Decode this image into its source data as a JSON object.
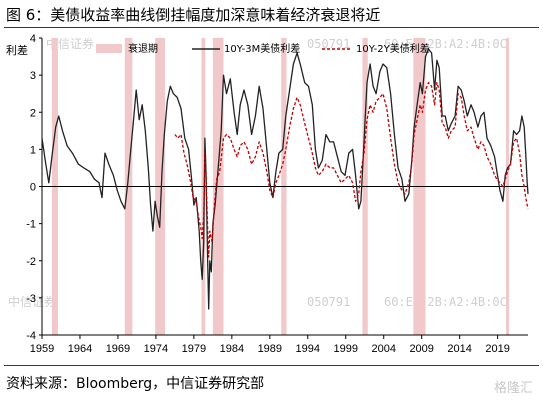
{
  "title": "图 6：美债收益率曲线倒挂幅度加深意味着经济衰退将近",
  "source": "资料来源：Bloomberg，中信证券研究部",
  "logo_text": "格隆汇",
  "watermarks": [
    "中信证券",
    "050791",
    "60:E3:2B:A2:4B:0C"
  ],
  "chart_data": {
    "type": "line",
    "ylabel": "利差",
    "ylim": [
      -4,
      4
    ],
    "yticks": [
      4,
      3,
      2,
      1,
      0,
      -1,
      -2,
      -3,
      -4
    ],
    "xlim": [
      1959,
      2023
    ],
    "xticks": [
      1959,
      1964,
      1969,
      1974,
      1979,
      1984,
      1989,
      1994,
      1999,
      2004,
      2009,
      2014,
      2019
    ],
    "legend_position": "top",
    "legend": [
      "衰退期",
      "10Y-3M美债利差",
      "10Y-2Y美债利差"
    ],
    "colors": {
      "recession": "#f2c9cb",
      "spread_10y3m": "#222222",
      "spread_10y2y": "#c00000"
    },
    "recessions": [
      [
        1960.3,
        1961.1
      ],
      [
        1969.9,
        1970.9
      ],
      [
        1973.9,
        1975.2
      ],
      [
        1980.0,
        1980.5
      ],
      [
        1981.5,
        1982.9
      ],
      [
        1990.5,
        1991.2
      ],
      [
        2001.2,
        2001.9
      ],
      [
        2007.9,
        2009.5
      ],
      [
        2020.1,
        2020.4
      ]
    ],
    "series": [
      {
        "name": "10Y-3M美债利差",
        "points": [
          [
            1959.0,
            1.3
          ],
          [
            1959.5,
            0.6
          ],
          [
            1959.9,
            0.1
          ],
          [
            1960.3,
            0.8
          ],
          [
            1960.8,
            1.6
          ],
          [
            1961.2,
            1.9
          ],
          [
            1961.7,
            1.5
          ],
          [
            1962.3,
            1.1
          ],
          [
            1963.0,
            0.9
          ],
          [
            1963.8,
            0.6
          ],
          [
            1964.5,
            0.5
          ],
          [
            1965.3,
            0.4
          ],
          [
            1965.9,
            0.2
          ],
          [
            1966.5,
            0.1
          ],
          [
            1966.9,
            -0.3
          ],
          [
            1967.3,
            0.9
          ],
          [
            1967.8,
            0.6
          ],
          [
            1968.4,
            0.3
          ],
          [
            1968.9,
            -0.1
          ],
          [
            1969.4,
            -0.4
          ],
          [
            1969.9,
            -0.6
          ],
          [
            1970.3,
            0.1
          ],
          [
            1970.7,
            1.0
          ],
          [
            1971.1,
            1.9
          ],
          [
            1971.4,
            2.6
          ],
          [
            1971.8,
            1.8
          ],
          [
            1972.2,
            2.2
          ],
          [
            1972.6,
            1.5
          ],
          [
            1973.0,
            0.5
          ],
          [
            1973.3,
            -0.5
          ],
          [
            1973.6,
            -1.2
          ],
          [
            1973.9,
            -0.4
          ],
          [
            1974.2,
            -0.8
          ],
          [
            1974.5,
            -1.1
          ],
          [
            1974.8,
            0.4
          ],
          [
            1975.1,
            1.4
          ],
          [
            1975.5,
            2.3
          ],
          [
            1975.9,
            2.7
          ],
          [
            1976.3,
            2.5
          ],
          [
            1976.8,
            2.4
          ],
          [
            1977.3,
            2.1
          ],
          [
            1977.8,
            1.3
          ],
          [
            1978.3,
            1.0
          ],
          [
            1978.7,
            0.2
          ],
          [
            1979.0,
            -0.5
          ],
          [
            1979.3,
            -0.3
          ],
          [
            1979.7,
            -1.2
          ],
          [
            1979.9,
            -2.0
          ],
          [
            1980.1,
            -2.5
          ],
          [
            1980.3,
            -1.5
          ],
          [
            1980.45,
            1.3
          ],
          [
            1980.6,
            0.4
          ],
          [
            1980.8,
            -1.8
          ],
          [
            1980.95,
            -3.3
          ],
          [
            1981.1,
            -2.0
          ],
          [
            1981.3,
            -2.3
          ],
          [
            1981.5,
            -1.0
          ],
          [
            1981.8,
            -0.5
          ],
          [
            1982.2,
            0.5
          ],
          [
            1982.6,
            1.5
          ],
          [
            1982.9,
            3.0
          ],
          [
            1983.3,
            2.5
          ],
          [
            1983.8,
            2.9
          ],
          [
            1984.3,
            2.0
          ],
          [
            1984.7,
            1.4
          ],
          [
            1985.1,
            2.2
          ],
          [
            1985.6,
            2.6
          ],
          [
            1986.1,
            2.2
          ],
          [
            1986.6,
            1.4
          ],
          [
            1987.1,
            1.9
          ],
          [
            1987.6,
            2.7
          ],
          [
            1988.1,
            2.1
          ],
          [
            1988.6,
            1.0
          ],
          [
            1989.0,
            0.1
          ],
          [
            1989.4,
            -0.3
          ],
          [
            1989.8,
            0.4
          ],
          [
            1990.2,
            0.9
          ],
          [
            1990.7,
            1.0
          ],
          [
            1991.1,
            1.9
          ],
          [
            1991.6,
            2.6
          ],
          [
            1992.1,
            3.3
          ],
          [
            1992.6,
            3.6
          ],
          [
            1993.0,
            3.3
          ],
          [
            1993.6,
            2.8
          ],
          [
            1994.1,
            2.7
          ],
          [
            1994.6,
            2.2
          ],
          [
            1995.0,
            1.0
          ],
          [
            1995.4,
            0.5
          ],
          [
            1995.9,
            0.7
          ],
          [
            1996.4,
            1.4
          ],
          [
            1996.9,
            1.2
          ],
          [
            1997.4,
            1.2
          ],
          [
            1997.9,
            0.8
          ],
          [
            1998.4,
            0.4
          ],
          [
            1998.9,
            0.3
          ],
          [
            1999.4,
            0.9
          ],
          [
            1999.9,
            1.0
          ],
          [
            2000.3,
            0.3
          ],
          [
            2000.7,
            -0.6
          ],
          [
            2001.0,
            -0.4
          ],
          [
            2001.4,
            1.2
          ],
          [
            2001.8,
            2.8
          ],
          [
            2002.2,
            3.3
          ],
          [
            2002.6,
            2.7
          ],
          [
            2003.0,
            2.5
          ],
          [
            2003.5,
            3.1
          ],
          [
            2003.9,
            3.3
          ],
          [
            2004.4,
            3.2
          ],
          [
            2004.9,
            2.5
          ],
          [
            2005.4,
            1.4
          ],
          [
            2005.9,
            0.5
          ],
          [
            2006.4,
            0.2
          ],
          [
            2006.8,
            -0.4
          ],
          [
            2007.3,
            -0.2
          ],
          [
            2007.7,
            0.7
          ],
          [
            2008.0,
            1.6
          ],
          [
            2008.4,
            2.2
          ],
          [
            2008.8,
            2.8
          ],
          [
            2009.1,
            2.5
          ],
          [
            2009.5,
            3.5
          ],
          [
            2009.9,
            3.7
          ],
          [
            2010.3,
            3.6
          ],
          [
            2010.7,
            2.6
          ],
          [
            2011.0,
            3.4
          ],
          [
            2011.3,
            3.2
          ],
          [
            2011.7,
            1.9
          ],
          [
            2012.1,
            1.9
          ],
          [
            2012.5,
            1.5
          ],
          [
            2012.9,
            1.7
          ],
          [
            2013.4,
            1.9
          ],
          [
            2013.8,
            2.7
          ],
          [
            2014.2,
            2.6
          ],
          [
            2014.6,
            2.3
          ],
          [
            2015.0,
            1.9
          ],
          [
            2015.5,
            2.2
          ],
          [
            2015.9,
            2.0
          ],
          [
            2016.4,
            1.6
          ],
          [
            2016.8,
            1.9
          ],
          [
            2017.2,
            2.0
          ],
          [
            2017.6,
            1.3
          ],
          [
            2018.1,
            1.1
          ],
          [
            2018.6,
            0.8
          ],
          [
            2018.9,
            0.4
          ],
          [
            2019.3,
            -0.1
          ],
          [
            2019.7,
            -0.4
          ],
          [
            2020.0,
            0.3
          ],
          [
            2020.3,
            0.5
          ],
          [
            2020.7,
            0.6
          ],
          [
            2021.1,
            1.5
          ],
          [
            2021.5,
            1.4
          ],
          [
            2021.9,
            1.5
          ],
          [
            2022.2,
            1.9
          ],
          [
            2022.5,
            1.6
          ],
          [
            2022.7,
            0.9
          ],
          [
            2022.9,
            0.1
          ],
          [
            2023.0,
            -0.2
          ]
        ]
      },
      {
        "name": "10Y-2Y美债利差",
        "points": [
          [
            1976.5,
            1.4
          ],
          [
            1976.9,
            1.3
          ],
          [
            1977.3,
            1.4
          ],
          [
            1977.7,
            0.9
          ],
          [
            1978.1,
            0.6
          ],
          [
            1978.6,
            0.1
          ],
          [
            1978.9,
            -0.3
          ],
          [
            1979.3,
            -0.4
          ],
          [
            1979.6,
            -0.8
          ],
          [
            1979.9,
            -1.1
          ],
          [
            1980.1,
            -1.4
          ],
          [
            1980.3,
            -0.8
          ],
          [
            1980.45,
            0.9
          ],
          [
            1980.6,
            0.3
          ],
          [
            1980.8,
            -1.0
          ],
          [
            1980.95,
            -1.9
          ],
          [
            1981.1,
            -1.2
          ],
          [
            1981.4,
            -1.5
          ],
          [
            1981.7,
            -0.5
          ],
          [
            1982.0,
            0.2
          ],
          [
            1982.4,
            0.4
          ],
          [
            1982.9,
            1.3
          ],
          [
            1983.3,
            1.4
          ],
          [
            1983.8,
            1.3
          ],
          [
            1984.3,
            1.0
          ],
          [
            1984.7,
            0.8
          ],
          [
            1985.1,
            1.1
          ],
          [
            1985.6,
            1.2
          ],
          [
            1986.1,
            1.0
          ],
          [
            1986.6,
            0.6
          ],
          [
            1987.1,
            0.8
          ],
          [
            1987.6,
            1.2
          ],
          [
            1988.1,
            0.9
          ],
          [
            1988.6,
            0.4
          ],
          [
            1989.0,
            -0.1
          ],
          [
            1989.4,
            -0.3
          ],
          [
            1989.8,
            0.1
          ],
          [
            1990.2,
            0.3
          ],
          [
            1990.7,
            0.6
          ],
          [
            1991.1,
            1.0
          ],
          [
            1991.6,
            1.6
          ],
          [
            1992.1,
            2.1
          ],
          [
            1992.6,
            2.4
          ],
          [
            1993.0,
            2.2
          ],
          [
            1993.6,
            1.7
          ],
          [
            1994.1,
            1.3
          ],
          [
            1994.6,
            0.9
          ],
          [
            1995.0,
            0.5
          ],
          [
            1995.4,
            0.3
          ],
          [
            1995.9,
            0.4
          ],
          [
            1996.4,
            0.6
          ],
          [
            1996.9,
            0.5
          ],
          [
            1997.4,
            0.5
          ],
          [
            1997.9,
            0.3
          ],
          [
            1998.4,
            0.1
          ],
          [
            1998.9,
            0.2
          ],
          [
            1999.4,
            0.3
          ],
          [
            1999.9,
            0.1
          ],
          [
            2000.3,
            -0.4
          ],
          [
            2000.7,
            -0.2
          ],
          [
            2001.0,
            0.4
          ],
          [
            2001.4,
            0.9
          ],
          [
            2001.8,
            1.8
          ],
          [
            2002.2,
            2.2
          ],
          [
            2002.6,
            2.0
          ],
          [
            2003.0,
            2.3
          ],
          [
            2003.5,
            2.4
          ],
          [
            2003.9,
            2.5
          ],
          [
            2004.4,
            2.1
          ],
          [
            2004.9,
            1.3
          ],
          [
            2005.4,
            0.6
          ],
          [
            2005.9,
            0.1
          ],
          [
            2006.4,
            -0.1
          ],
          [
            2006.8,
            -0.2
          ],
          [
            2007.3,
            0.1
          ],
          [
            2007.7,
            0.6
          ],
          [
            2008.0,
            1.4
          ],
          [
            2008.4,
            1.8
          ],
          [
            2008.8,
            2.2
          ],
          [
            2009.1,
            2.0
          ],
          [
            2009.5,
            2.6
          ],
          [
            2009.9,
            2.8
          ],
          [
            2010.3,
            2.7
          ],
          [
            2010.7,
            2.2
          ],
          [
            2011.0,
            2.8
          ],
          [
            2011.3,
            2.6
          ],
          [
            2011.7,
            1.7
          ],
          [
            2012.1,
            1.6
          ],
          [
            2012.5,
            1.3
          ],
          [
            2012.9,
            1.5
          ],
          [
            2013.4,
            1.6
          ],
          [
            2013.8,
            2.5
          ],
          [
            2014.2,
            2.4
          ],
          [
            2014.6,
            1.9
          ],
          [
            2015.0,
            1.5
          ],
          [
            2015.5,
            1.6
          ],
          [
            2015.9,
            1.3
          ],
          [
            2016.4,
            1.0
          ],
          [
            2016.8,
            1.2
          ],
          [
            2017.2,
            1.1
          ],
          [
            2017.6,
            0.8
          ],
          [
            2018.1,
            0.6
          ],
          [
            2018.6,
            0.3
          ],
          [
            2018.9,
            0.2
          ],
          [
            2019.3,
            0.1
          ],
          [
            2019.7,
            0.0
          ],
          [
            2020.0,
            0.2
          ],
          [
            2020.3,
            0.4
          ],
          [
            2020.7,
            0.6
          ],
          [
            2021.1,
            1.2
          ],
          [
            2021.5,
            1.3
          ],
          [
            2021.9,
            0.9
          ],
          [
            2022.2,
            0.3
          ],
          [
            2022.5,
            0.0
          ],
          [
            2022.7,
            -0.3
          ],
          [
            2022.9,
            -0.5
          ],
          [
            2023.0,
            -0.6
          ]
        ]
      }
    ]
  }
}
